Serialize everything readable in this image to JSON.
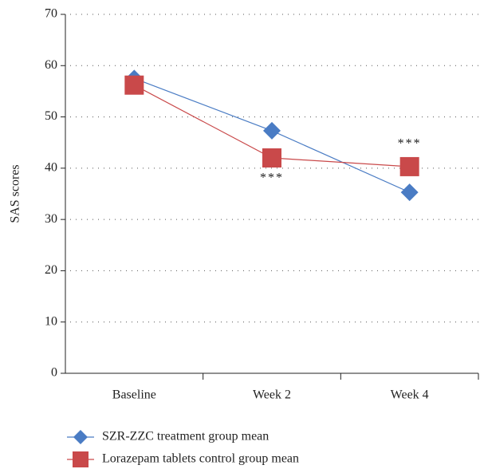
{
  "chart_data": {
    "type": "line",
    "y_label": "SAS scores",
    "categories": [
      "Baseline",
      "Week 2",
      "Week 4"
    ],
    "series": [
      {
        "name": "SZR-ZZC treatment group mean",
        "color": "#4a7cc4",
        "marker": "diamond",
        "values": [
          57.5,
          47.3,
          35.3
        ]
      },
      {
        "name": "Lorazepam tablets control group mean",
        "color": "#c9494a",
        "marker": "square",
        "values": [
          56.2,
          42.0,
          40.3
        ]
      }
    ],
    "annotations": [
      "***",
      "***"
    ],
    "ylim": [
      0,
      70
    ],
    "yticks": [
      0,
      10,
      20,
      30,
      40,
      50,
      60,
      70
    ],
    "grid": true
  }
}
